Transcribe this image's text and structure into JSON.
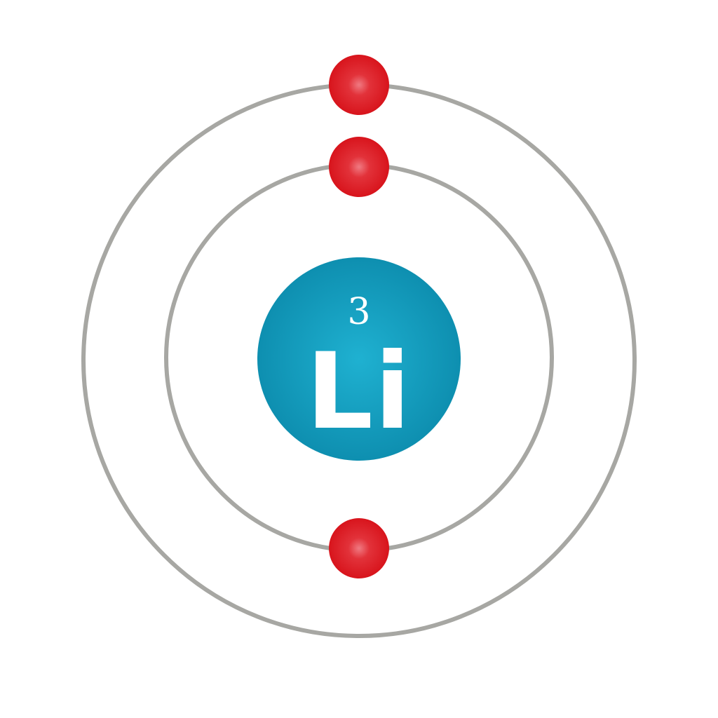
{
  "element": {
    "atomic_number": "3",
    "symbol": "Li"
  },
  "shells": [
    {
      "electrons": 2
    },
    {
      "electrons": 1
    }
  ],
  "colors": {
    "background": "#ffffff",
    "orbit": "#a7a7a3",
    "nucleus_center": "#1fb1d1",
    "nucleus_edge": "#0e8fb0",
    "electron_center": "#f07a82",
    "electron_edge": "#d8141c",
    "text": "#ffffff"
  }
}
